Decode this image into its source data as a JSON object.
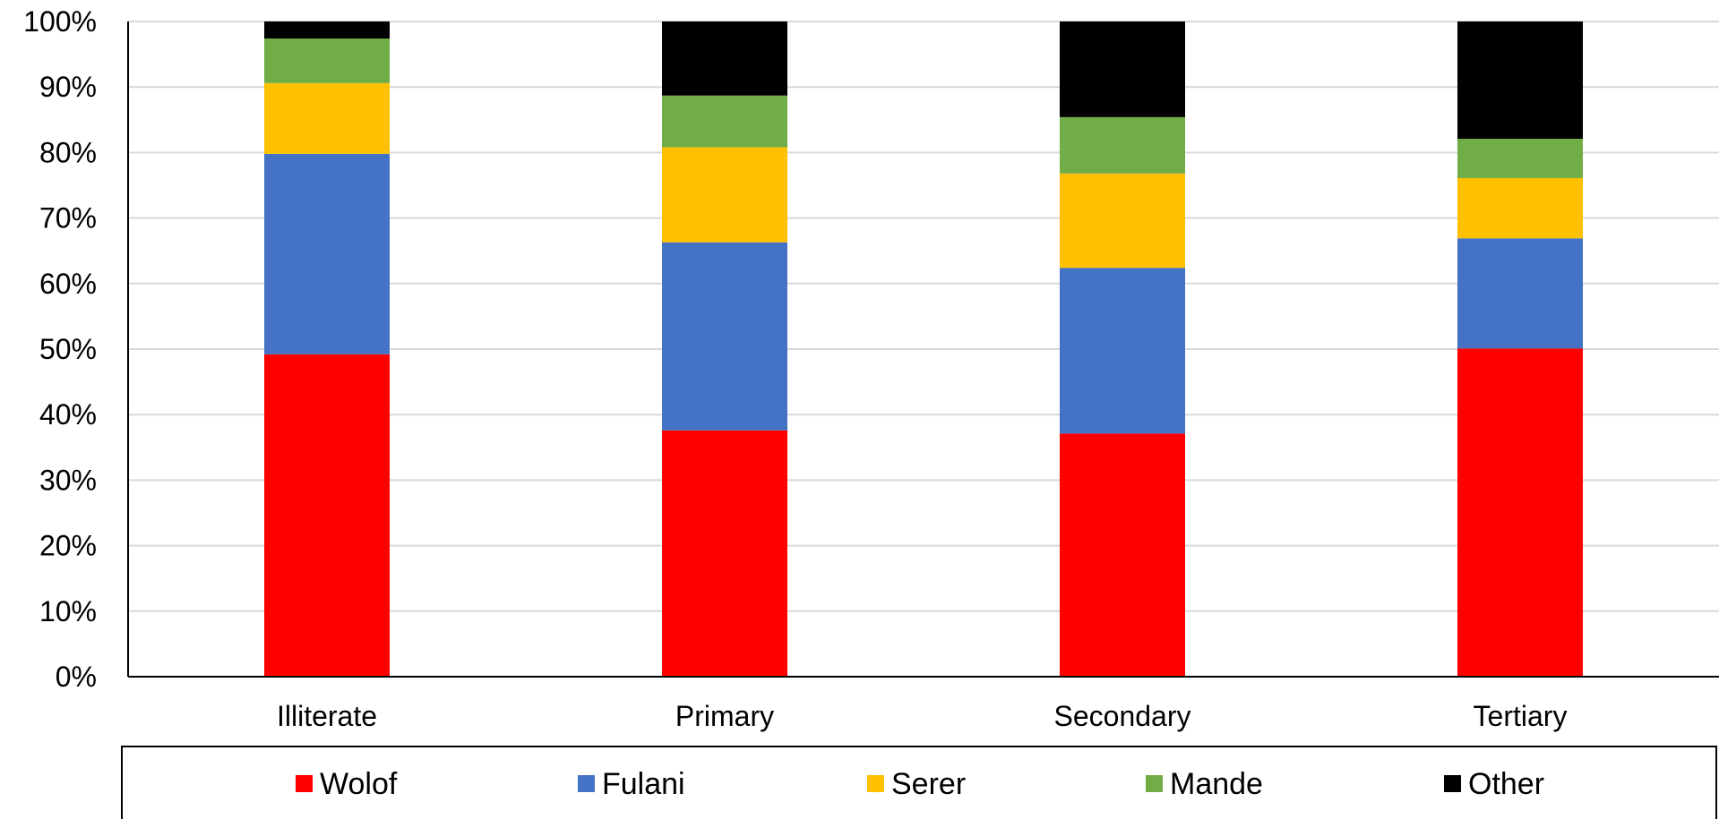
{
  "chart_data": {
    "type": "bar",
    "stacked": true,
    "normalized": true,
    "categories": [
      "Illiterate",
      "Primary",
      "Secondary",
      "Tertiary"
    ],
    "series": [
      {
        "name": "Wolof",
        "color": "#ff0000",
        "values": [
          49.2,
          37.6,
          37.1,
          50.1
        ]
      },
      {
        "name": "Fulani",
        "color": "#4472c4",
        "values": [
          30.6,
          28.7,
          25.3,
          16.8
        ]
      },
      {
        "name": "Serer",
        "color": "#ffc000",
        "values": [
          10.8,
          14.5,
          14.4,
          9.2
        ]
      },
      {
        "name": "Mande",
        "color": "#70ad47",
        "values": [
          6.8,
          7.9,
          8.6,
          6.0
        ]
      },
      {
        "name": "Other",
        "color": "#000000",
        "values": [
          2.6,
          11.3,
          14.6,
          17.9
        ]
      }
    ],
    "ylim": [
      0,
      100
    ],
    "yticks": [
      "0%",
      "10%",
      "20%",
      "30%",
      "40%",
      "50%",
      "60%",
      "70%",
      "80%",
      "90%",
      "100%"
    ],
    "grid": true,
    "legend_position": "bottom"
  }
}
